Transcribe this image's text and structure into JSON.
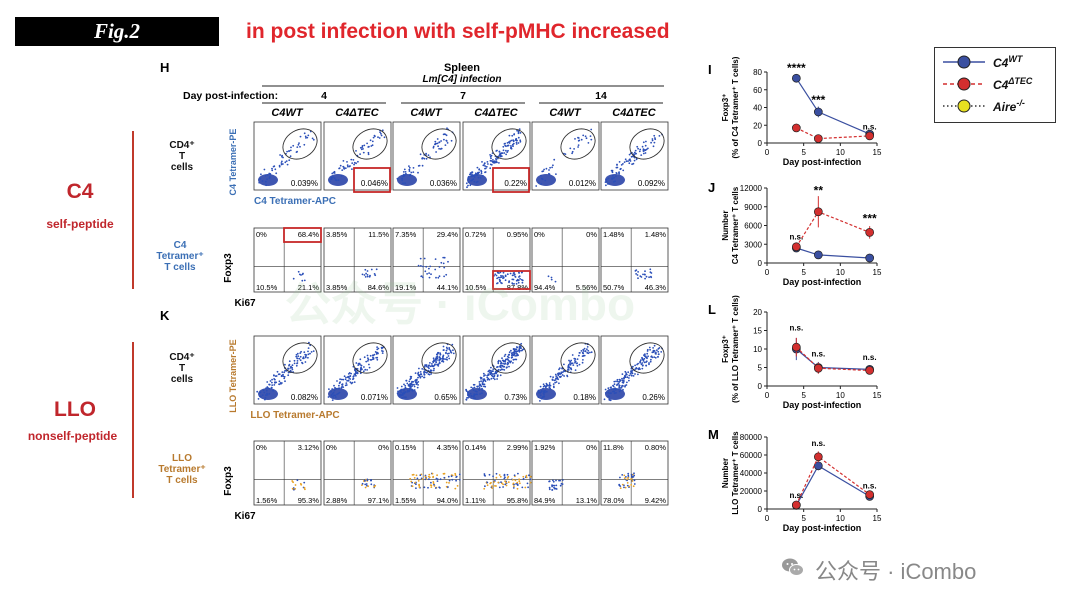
{
  "header": {
    "fig_label": "Fig.2",
    "headline": "in post infection with self-pMHC increased"
  },
  "left_groups": {
    "c4": {
      "title": "C4",
      "subtitle": "self-peptide",
      "row1_label": "CD4⁺ T cells",
      "row2_label": "C4 Tetramer⁺ T cells"
    },
    "llo": {
      "title": "LLO",
      "subtitle": "nonself-peptide",
      "row1_label": "CD4⁺ T cells",
      "row2_label": "LLO Tetramer⁺ T cells"
    }
  },
  "panel_H": {
    "letter": "H",
    "tissue": "Spleen",
    "infection": "Lm[C4] infection",
    "day_label": "Day post-infection:",
    "days": [
      "4",
      "7",
      "14"
    ],
    "genotypes": [
      "C4WT",
      "C4ΔTEC",
      "C4WT",
      "C4ΔTEC",
      "C4WT",
      "C4ΔTEC"
    ],
    "row1_ylabel": "C4 Tetramer-PE",
    "row1_xlabel": "C4 Tetramer-APC",
    "row1_values": [
      "0.039%",
      "0.046%",
      "0.036%",
      "0.22%",
      "0.012%",
      "0.092%"
    ],
    "row2_ylabel": "Foxp3",
    "row2_xlabel": "Ki67",
    "row2_quadrants": [
      [
        "0%",
        "68.4%",
        "10.5%",
        "21.1%"
      ],
      [
        "3.85%",
        "11.5%",
        "3.85%",
        "84.6%"
      ],
      [
        "7.35%",
        "29.4%",
        "19.1%",
        "44.1%"
      ],
      [
        "0.72%",
        "0.95%",
        "10.5%",
        "87.8%"
      ],
      [
        "0%",
        "0%",
        "94.4%",
        "5.56%"
      ],
      [
        "1.48%",
        "1.48%",
        "50.7%",
        "46.3%"
      ]
    ]
  },
  "panel_K": {
    "letter": "K",
    "row1_ylabel": "LLO Tetramer-PE",
    "row1_xlabel": "LLO Tetramer-APC",
    "row1_values": [
      "0.082%",
      "0.071%",
      "0.65%",
      "0.73%",
      "0.18%",
      "0.26%"
    ],
    "row2_ylabel": "Foxp3",
    "row2_xlabel": "Ki67",
    "row2_quadrants": [
      [
        "0%",
        "3.12%",
        "1.56%",
        "95.3%"
      ],
      [
        "0%",
        "0%",
        "2.88%",
        "97.1%"
      ],
      [
        "0.15%",
        "4.35%",
        "1.55%",
        "94.0%"
      ],
      [
        "0.14%",
        "2.99%",
        "1.11%",
        "95.8%"
      ],
      [
        "1.92%",
        "0%",
        "84.9%",
        "13.1%"
      ],
      [
        "11.8%",
        "0.80%",
        "78.0%",
        "9.42%"
      ]
    ]
  },
  "legend": {
    "items": [
      {
        "label": "C4",
        "sup": "WT",
        "color": "#3a4fa0",
        "line": "solid"
      },
      {
        "label": "C4",
        "sup": "ΔTEC",
        "color": "#d32f2f",
        "line": "dashed"
      },
      {
        "label": "Aire",
        "sup": "-/-",
        "color": "#e8e020",
        "line": "dotted"
      }
    ]
  },
  "colors": {
    "wt": "#3a4fa0",
    "dtec": "#d32f2f",
    "aire": "#e8e020",
    "flow_dot": "#2b4fb8"
  },
  "chart_data": [
    {
      "type": "line",
      "letter": "I",
      "ylabel_line1": "Foxp3⁺",
      "ylabel_line2": "(% of C4 Tetramer⁺ T cells)",
      "xlabel": "Day post-infection",
      "xlim": [
        0,
        15
      ],
      "ylim": [
        0,
        80
      ],
      "xticks": [
        0,
        5,
        10,
        15
      ],
      "yticks": [
        0,
        20,
        40,
        60,
        80
      ],
      "x": [
        4,
        7,
        14
      ],
      "series": [
        {
          "name": "C4WT",
          "values": [
            73,
            35,
            10
          ],
          "err": [
            3,
            6,
            3
          ]
        },
        {
          "name": "C4ΔTEC",
          "values": [
            17,
            5,
            8
          ],
          "err": [
            4,
            2,
            2
          ]
        }
      ],
      "annotations": [
        {
          "x": 4,
          "y": 80,
          "text": "****"
        },
        {
          "x": 7,
          "y": 44,
          "text": "***"
        },
        {
          "x": 14,
          "y": 15,
          "text": "n.s."
        }
      ]
    },
    {
      "type": "line",
      "letter": "J",
      "ylabel_line1": "Number",
      "ylabel_line2": "C4 Tetramer⁺ T cells",
      "xlabel": "Day post-infection",
      "xlim": [
        0,
        15
      ],
      "ylim": [
        0,
        12000
      ],
      "xticks": [
        0,
        5,
        10,
        15
      ],
      "yticks": [
        0,
        3000,
        6000,
        9000,
        12000
      ],
      "x": [
        4,
        7,
        14
      ],
      "series": [
        {
          "name": "C4WT",
          "values": [
            2400,
            1300,
            800
          ],
          "err": [
            300,
            200,
            100
          ]
        },
        {
          "name": "C4ΔTEC",
          "values": [
            2600,
            8200,
            4900
          ],
          "err": [
            400,
            2500,
            1000
          ]
        }
      ],
      "annotations": [
        {
          "x": 4,
          "y": 3800,
          "text": "n.s."
        },
        {
          "x": 7,
          "y": 11000,
          "text": "**"
        },
        {
          "x": 14,
          "y": 6500,
          "text": "***"
        }
      ]
    },
    {
      "type": "line",
      "letter": "L",
      "ylabel_line1": "Foxp3⁺",
      "ylabel_line2": "(% of LLO Tetramer⁺ T cells)",
      "xlabel": "Day post-infection",
      "xlim": [
        0,
        15
      ],
      "ylim": [
        0,
        20
      ],
      "xticks": [
        0,
        5,
        10,
        15
      ],
      "yticks": [
        0,
        5,
        10,
        15,
        20
      ],
      "x": [
        4,
        7,
        14
      ],
      "series": [
        {
          "name": "C4WT",
          "values": [
            10,
            5,
            4.5
          ],
          "err": [
            3,
            1.5,
            1
          ]
        },
        {
          "name": "C4ΔTEC",
          "values": [
            10.5,
            4.8,
            4.2
          ],
          "err": [
            2.5,
            1.5,
            1
          ]
        }
      ],
      "annotations": [
        {
          "x": 4,
          "y": 15,
          "text": "n.s."
        },
        {
          "x": 7,
          "y": 8,
          "text": "n.s."
        },
        {
          "x": 14,
          "y": 7,
          "text": "n.s."
        }
      ]
    },
    {
      "type": "line",
      "letter": "M",
      "ylabel_line1": "Number",
      "ylabel_line2": "LLO Tetramer⁺ T cells",
      "xlabel": "Day post-infection",
      "xlim": [
        0,
        15
      ],
      "ylim": [
        0,
        80000
      ],
      "xticks": [
        0,
        5,
        10,
        15
      ],
      "yticks": [
        0,
        20000,
        40000,
        60000,
        80000
      ],
      "x": [
        4,
        7,
        14
      ],
      "series": [
        {
          "name": "C4WT",
          "values": [
            4000,
            48000,
            14000
          ],
          "err": [
            1000,
            5000,
            2000
          ]
        },
        {
          "name": "C4ΔTEC",
          "values": [
            4500,
            58000,
            16000
          ],
          "err": [
            1000,
            6000,
            2000
          ]
        }
      ],
      "annotations": [
        {
          "x": 4,
          "y": 12000,
          "text": "n.s."
        },
        {
          "x": 7,
          "y": 70000,
          "text": "n.s."
        },
        {
          "x": 14,
          "y": 23000,
          "text": "n.s."
        }
      ]
    }
  ],
  "watermark": {
    "text": "公众号 · iCombo",
    "center_text": "公众号 · iCombo"
  }
}
